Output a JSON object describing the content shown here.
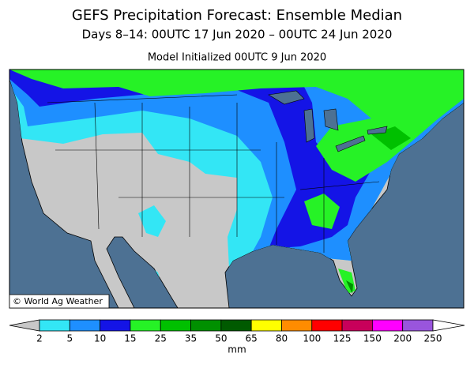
{
  "header": {
    "title": "GEFS Precipitation Forecast: Ensemble Median",
    "subtitle": "Days 8–14: 00UTC 17 Jun 2020 – 00UTC 24 Jun 2020",
    "initialized": "Model Initialized 00UTC 9 Jun 2020"
  },
  "map": {
    "credit": "© World Ag Weather"
  },
  "colorbar": {
    "labels": [
      2,
      5,
      10,
      15,
      25,
      35,
      50,
      65,
      80,
      100,
      125,
      150,
      200,
      250
    ],
    "colors": [
      "#33e6f5",
      "#1e8fff",
      "#1414e6",
      "#26f226",
      "#00c000",
      "#009000",
      "#005a00",
      "#ffff00",
      "#ff8c00",
      "#ff0000",
      "#c8005a",
      "#ff00ff",
      "#9955dd"
    ],
    "under_color": "#c8c8c8",
    "over_color": "#ffffff",
    "unit": "mm"
  }
}
